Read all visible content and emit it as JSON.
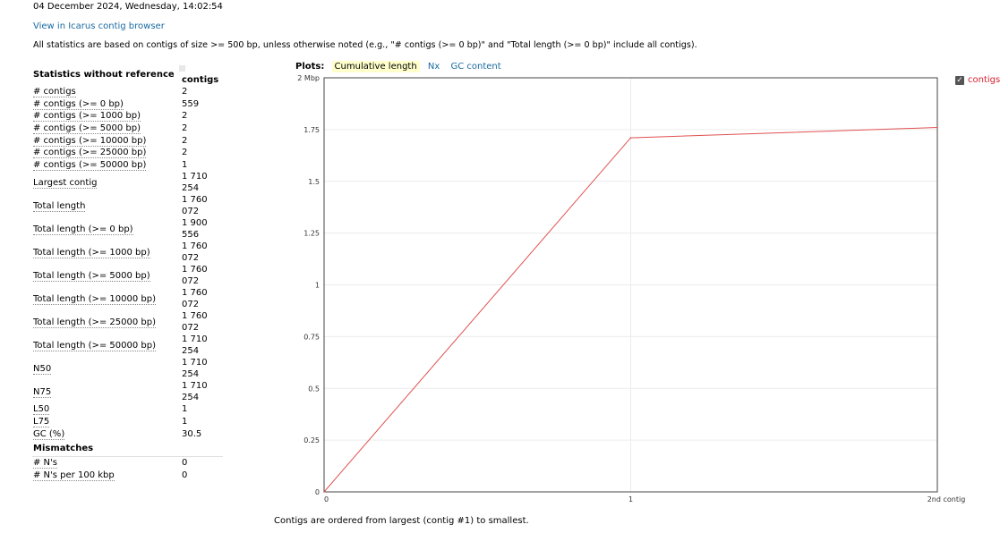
{
  "report": {
    "date": "04 December 2024, Wednesday, 14:02:54",
    "icarus_link": "View in Icarus contig browser",
    "note": "All statistics are based on contigs of size >= 500 bp, unless otherwise noted (e.g., \"# contigs (>= 0 bp)\" and \"Total length (>= 0 bp)\" include all contigs)."
  },
  "stats": {
    "header": "Statistics without reference",
    "column": "contigs",
    "rows": [
      {
        "name": "# contigs",
        "value": "2"
      },
      {
        "name": "# contigs (>= 0 bp)",
        "value": "559"
      },
      {
        "name": "# contigs (>= 1000 bp)",
        "value": "2"
      },
      {
        "name": "# contigs (>= 5000 bp)",
        "value": "2"
      },
      {
        "name": "# contigs (>= 10000 bp)",
        "value": "2"
      },
      {
        "name": "# contigs (>= 25000 bp)",
        "value": "2"
      },
      {
        "name": "# contigs (>= 50000 bp)",
        "value": "1"
      },
      {
        "name": "Largest contig",
        "value": "1 710 254"
      },
      {
        "name": "Total length",
        "value": "1 760 072"
      },
      {
        "name": "Total length (>= 0 bp)",
        "value": "1 900 556"
      },
      {
        "name": "Total length (>= 1000 bp)",
        "value": "1 760 072"
      },
      {
        "name": "Total length (>= 5000 bp)",
        "value": "1 760 072"
      },
      {
        "name": "Total length (>= 10000 bp)",
        "value": "1 760 072"
      },
      {
        "name": "Total length (>= 25000 bp)",
        "value": "1 760 072"
      },
      {
        "name": "Total length (>= 50000 bp)",
        "value": "1 710 254"
      },
      {
        "name": "N50",
        "value": "1 710 254"
      },
      {
        "name": "N75",
        "value": "1 710 254"
      },
      {
        "name": "L50",
        "value": "1"
      },
      {
        "name": "L75",
        "value": "1"
      },
      {
        "name": "GC (%)",
        "value": "30.5"
      }
    ],
    "mismatches_header": "Mismatches",
    "mismatch_rows": [
      {
        "name": "# N's",
        "value": "0"
      },
      {
        "name": "# N's per 100 kbp",
        "value": "0"
      }
    ]
  },
  "plots": {
    "title": "Plots:",
    "tabs": [
      "Cumulative length",
      "Nx",
      "GC content"
    ],
    "active_tab": 0,
    "legend_label": "contigs",
    "footer": "Contigs are ordered from largest (contig #1) to smallest."
  },
  "chart_data": {
    "type": "line",
    "title": "",
    "xlabel": "",
    "ylabel": "",
    "x": [
      0,
      1,
      2
    ],
    "series": [
      {
        "name": "contigs",
        "values": [
          0,
          1.710254,
          1.760072
        ],
        "color": "#e05050"
      }
    ],
    "xlim": [
      0,
      2
    ],
    "ylim": [
      0,
      2
    ],
    "y_ticks": [
      "0",
      "0.25",
      "0.5",
      "0.75",
      "1",
      "1.25",
      "1.5",
      "1.75",
      "2 Mbp"
    ],
    "x_ticks": [
      "0",
      "1",
      "2nd contig"
    ],
    "grid": true,
    "legend": "top-right"
  }
}
